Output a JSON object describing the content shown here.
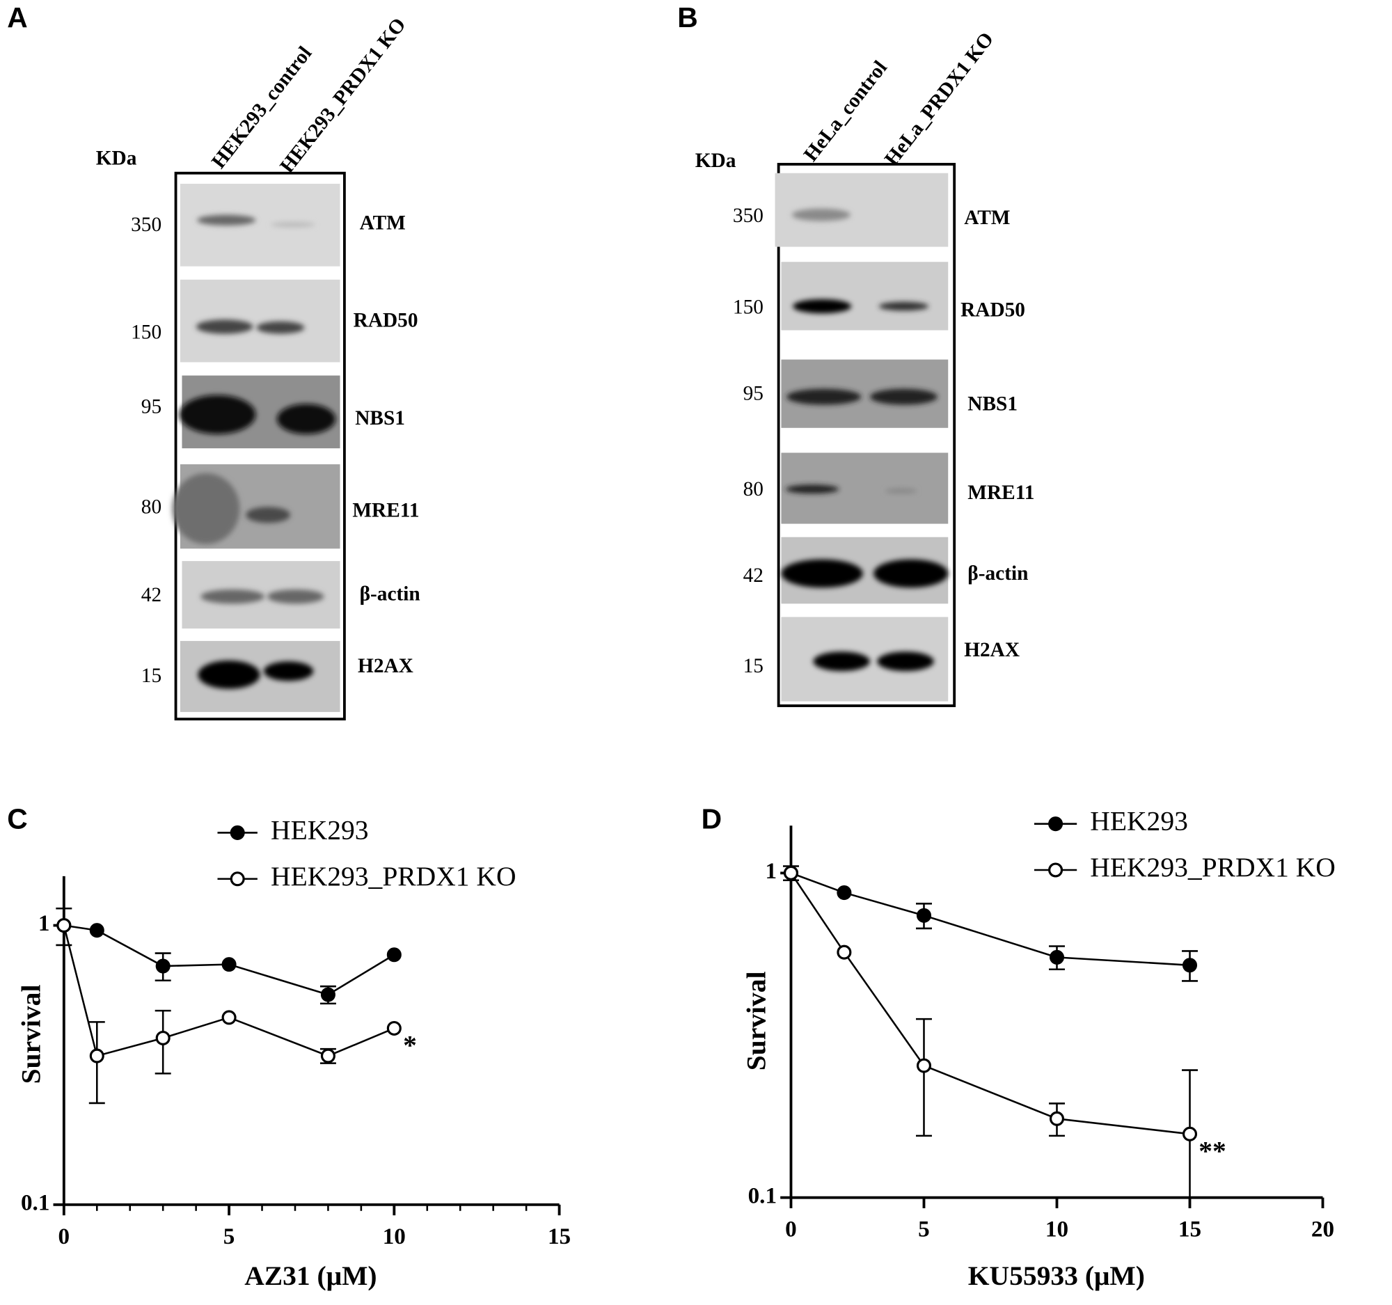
{
  "panel_labels": [
    "A",
    "B",
    "C",
    "D"
  ],
  "blots": [
    {
      "kda_label": "KDa",
      "lanes": [
        "HEK293_control",
        "HEK293_PRDX1 KO"
      ],
      "rows": [
        {
          "marker": "350",
          "protein": "ATM"
        },
        {
          "marker": "150",
          "protein": "RAD50"
        },
        {
          "marker": "95",
          "protein": "NBS1"
        },
        {
          "marker": "80",
          "protein": "MRE11"
        },
        {
          "marker": "42",
          "protein": "β-actin"
        },
        {
          "marker": "15",
          "protein": "H2AX"
        }
      ]
    },
    {
      "kda_label": "KDa",
      "lanes": [
        "HeLa_control",
        "HeLa_PRDX1 KO"
      ],
      "rows": [
        {
          "marker": "350",
          "protein": "ATM"
        },
        {
          "marker": "150",
          "protein": "RAD50"
        },
        {
          "marker": "95",
          "protein": "NBS1"
        },
        {
          "marker": "80",
          "protein": "MRE11"
        },
        {
          "marker": "42",
          "protein": "β-actin"
        },
        {
          "marker": "15",
          "protein": "H2AX"
        }
      ]
    }
  ],
  "chart_data": [
    {
      "type": "line",
      "x_label": "AZ31 (μM)",
      "y_label": "Survival",
      "log_y": true,
      "minor_xticks": true,
      "xlim": [
        0,
        15
      ],
      "xticks": [
        0,
        5,
        10,
        15
      ],
      "ylim": [
        0.1,
        1.5
      ],
      "yticks": [
        0.1,
        1
      ],
      "x": [
        0,
        1,
        3,
        5,
        8,
        10
      ],
      "series": [
        {
          "name": "HEK293",
          "color": "#000000",
          "marker": "filled",
          "values": [
            1,
            0.96,
            0.715,
            0.725,
            0.565,
            0.785
          ],
          "errors": [
            0.15,
            null,
            0.08,
            null,
            0.04,
            null
          ]
        },
        {
          "name": "HEK293_PRDX1 KO",
          "color": "#000000",
          "marker": "open",
          "values": [
            1,
            0.341,
            0.395,
            0.468,
            0.341,
            0.428
          ],
          "errors": [
            null,
            0.11,
            0.1,
            null,
            0.02,
            null
          ]
        }
      ],
      "annotation": "*"
    },
    {
      "type": "line",
      "x_label": "KU55933 (μM)",
      "y_label": "Survival",
      "log_y": true,
      "minor_xticks": false,
      "xlim": [
        0,
        20
      ],
      "xticks": [
        0,
        5,
        10,
        15,
        20
      ],
      "ylim": [
        0.1,
        1.4
      ],
      "yticks": [
        0.1,
        1
      ],
      "x": [
        0,
        2,
        5,
        10,
        15
      ],
      "series": [
        {
          "name": "HEK293",
          "color": "#000000",
          "marker": "filled",
          "values": [
            1,
            0.87,
            0.74,
            0.55,
            0.52
          ],
          "errors": [
            0.05,
            null,
            0.065,
            0.045,
            0.055
          ]
        },
        {
          "name": "HEK293_PRDX1 KO",
          "color": "#000000",
          "marker": "open",
          "values": [
            1,
            0.57,
            0.255,
            0.175,
            0.157
          ],
          "errors": [
            null,
            null,
            0.1,
            0.02,
            0.09
          ]
        }
      ],
      "annotation": "**"
    }
  ]
}
